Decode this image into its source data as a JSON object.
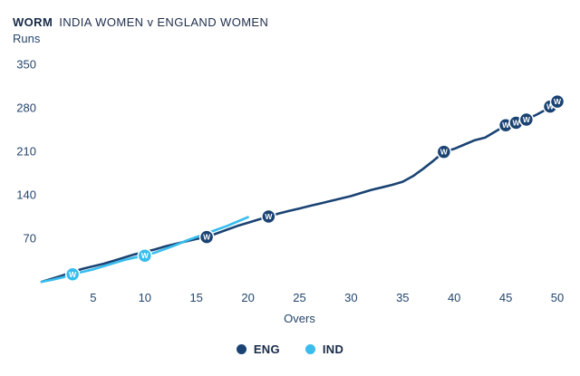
{
  "header": {
    "label": "WORM",
    "title": "INDIA WOMEN v ENGLAND WOMEN"
  },
  "legend": {
    "eng": "ENG",
    "ind": "IND"
  },
  "colors": {
    "eng_line": "#1a4373",
    "ind_line": "#38bdee",
    "axis_text": "#24466e",
    "title_text": "#182a47",
    "background": "#ffffff"
  },
  "chart_data": {
    "type": "line",
    "title": "WORM INDIA WOMEN v ENGLAND WOMEN",
    "xlabel": "Overs",
    "ylabel": "Runs",
    "xlim": [
      0,
      50
    ],
    "ylim": [
      0,
      350
    ],
    "x_ticks": [
      5,
      10,
      15,
      20,
      25,
      30,
      35,
      40,
      45,
      50
    ],
    "y_ticks": [
      70,
      140,
      210,
      280,
      350
    ],
    "grid": false,
    "legend_position": "bottom",
    "series": [
      {
        "name": "ENG",
        "color": "#1a4373",
        "points": [
          [
            0,
            0
          ],
          [
            1,
            5
          ],
          [
            2,
            10
          ],
          [
            3,
            16
          ],
          [
            4,
            21
          ],
          [
            5,
            25
          ],
          [
            6,
            29
          ],
          [
            7,
            34
          ],
          [
            8,
            39
          ],
          [
            9,
            44
          ],
          [
            10,
            48
          ],
          [
            11,
            52
          ],
          [
            12,
            57
          ],
          [
            13,
            61
          ],
          [
            14,
            65
          ],
          [
            15,
            69
          ],
          [
            16,
            72
          ],
          [
            17,
            78
          ],
          [
            18,
            84
          ],
          [
            19,
            90
          ],
          [
            20,
            95
          ],
          [
            21,
            100
          ],
          [
            22,
            105
          ],
          [
            23,
            110
          ],
          [
            24,
            114
          ],
          [
            25,
            118
          ],
          [
            26,
            122
          ],
          [
            27,
            126
          ],
          [
            28,
            130
          ],
          [
            29,
            134
          ],
          [
            30,
            138
          ],
          [
            31,
            143
          ],
          [
            32,
            148
          ],
          [
            33,
            152
          ],
          [
            34,
            156
          ],
          [
            35,
            161
          ],
          [
            36,
            170
          ],
          [
            37,
            182
          ],
          [
            38,
            195
          ],
          [
            39,
            209
          ],
          [
            40,
            214
          ],
          [
            41,
            221
          ],
          [
            42,
            228
          ],
          [
            43,
            232
          ],
          [
            44,
            242
          ],
          [
            45,
            252
          ],
          [
            46,
            256
          ],
          [
            47,
            261
          ],
          [
            48,
            269
          ],
          [
            49,
            278
          ],
          [
            49.5,
            285
          ],
          [
            50,
            290
          ]
        ],
        "wickets": [
          [
            16,
            72
          ],
          [
            22,
            105
          ],
          [
            39,
            209
          ],
          [
            45,
            252
          ],
          [
            46,
            256
          ],
          [
            47,
            261
          ],
          [
            49.3,
            282
          ],
          [
            50,
            290
          ]
        ]
      },
      {
        "name": "IND",
        "color": "#38bdee",
        "points": [
          [
            0,
            0
          ],
          [
            1,
            3
          ],
          [
            2,
            7
          ],
          [
            3,
            12
          ],
          [
            4,
            16
          ],
          [
            5,
            20
          ],
          [
            6,
            25
          ],
          [
            7,
            30
          ],
          [
            8,
            35
          ],
          [
            9,
            39
          ],
          [
            10,
            42
          ],
          [
            11,
            47
          ],
          [
            12,
            53
          ],
          [
            13,
            59
          ],
          [
            14,
            66
          ],
          [
            15,
            72
          ],
          [
            16,
            78
          ],
          [
            17,
            84
          ],
          [
            18,
            90
          ],
          [
            19,
            97
          ],
          [
            20,
            104
          ]
        ],
        "wickets": [
          [
            3,
            12
          ],
          [
            10,
            42
          ]
        ]
      }
    ]
  }
}
